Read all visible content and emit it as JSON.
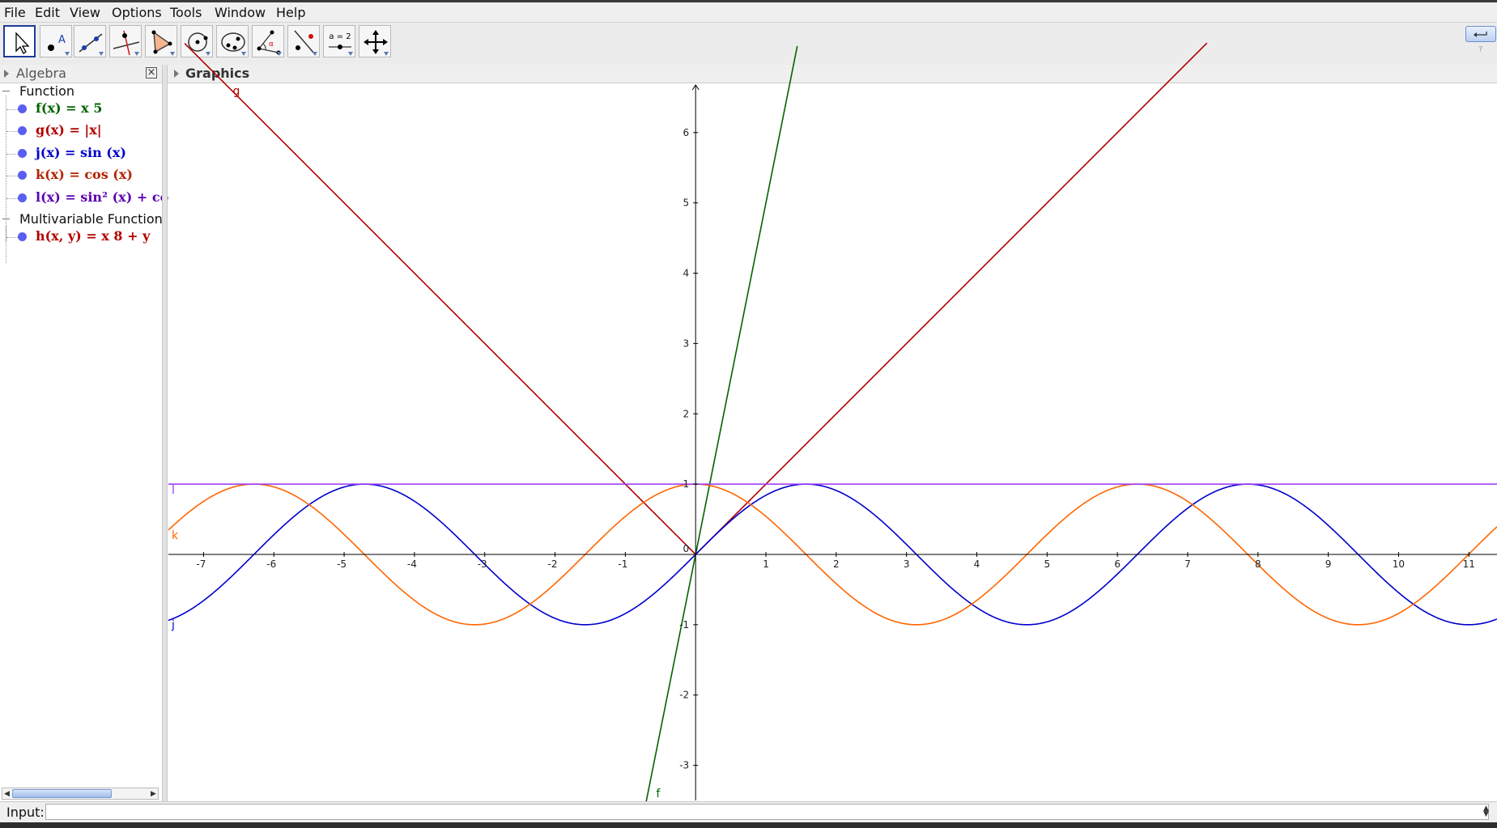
{
  "menu": [
    "File",
    "Edit",
    "View",
    "Options",
    "Tools",
    "Window",
    "Help"
  ],
  "toolbar": {
    "tools": [
      "move-tool",
      "point-tool",
      "line-tool",
      "perpendicular-line-tool",
      "polygon-tool",
      "circle-tool",
      "conic-tool",
      "angle-tool",
      "reflect-tool",
      "slider-tool",
      "move-graphics-view-tool"
    ],
    "slider_text": "a = 2",
    "point_text": "A"
  },
  "algebra": {
    "title": "Algebra",
    "groups": [
      {
        "label": "Function",
        "items": [
          {
            "text": "f(x) = x 5",
            "color": "#006400"
          },
          {
            "text": "g(x) = |x|",
            "color": "#b20000"
          },
          {
            "text": "j(x) = sin (x)",
            "color": "#0000cc"
          },
          {
            "text": "k(x) = cos (x)",
            "color": "#b22200"
          },
          {
            "text": "l(x) = sin² (x) + co",
            "color": "#5a00b0"
          }
        ]
      },
      {
        "label": "Multivariable Function",
        "items": [
          {
            "text": "h(x, y) = x 8 + y",
            "color": "#b20000"
          }
        ]
      }
    ]
  },
  "graphics": {
    "title": "Graphics"
  },
  "chart_data": {
    "type": "line",
    "xlim": [
      -7.5,
      11.4
    ],
    "ylim": [
      -3.5,
      6.7
    ],
    "x_ticks": [
      -7,
      -6,
      -5,
      -4,
      -3,
      -2,
      -1,
      1,
      2,
      3,
      4,
      5,
      6,
      7,
      8,
      9,
      10,
      11
    ],
    "y_ticks": [
      -3,
      -2,
      -1,
      1,
      2,
      3,
      4,
      5,
      6
    ],
    "origin_label": "0",
    "grid": false,
    "series": [
      {
        "name": "f",
        "formula": "5x",
        "color": "#006400"
      },
      {
        "name": "g",
        "formula": "|x|",
        "color": "#b20000"
      },
      {
        "name": "j",
        "formula": "sin(x)",
        "color": "#0000cc"
      },
      {
        "name": "k",
        "formula": "cos(x)",
        "color": "#ff6600"
      },
      {
        "name": "l",
        "formula": "sin²(x) + cos²(x)",
        "color": "#9933ff"
      }
    ]
  },
  "input": {
    "label": "Input:",
    "value": ""
  }
}
